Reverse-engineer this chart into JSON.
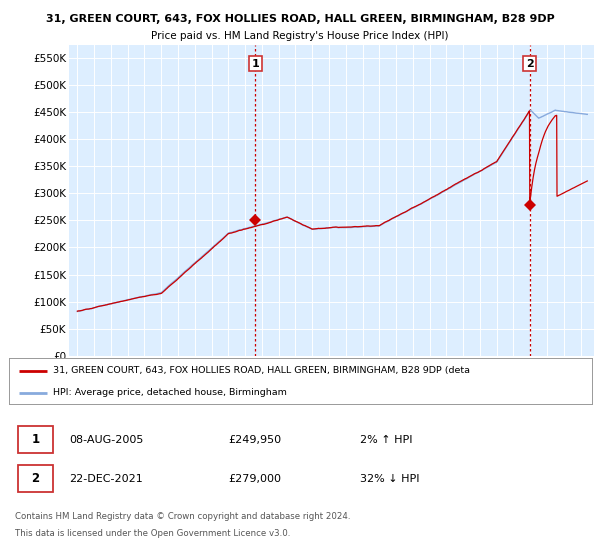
{
  "title_line1": "31, GREEN COURT, 643, FOX HOLLIES ROAD, HALL GREEN, BIRMINGHAM, B28 9DP",
  "title_line2": "Price paid vs. HM Land Registry's House Price Index (HPI)",
  "background_color": "#ffffff",
  "plot_bg_color": "#ddeeff",
  "grid_color": "#ffffff",
  "hpi_color": "#88aadd",
  "price_color": "#cc0000",
  "marker_color": "#cc0000",
  "ylim": [
    0,
    575000
  ],
  "yticks": [
    0,
    50000,
    100000,
    150000,
    200000,
    250000,
    300000,
    350000,
    400000,
    450000,
    500000,
    550000
  ],
  "ytick_labels": [
    "£0",
    "£50K",
    "£100K",
    "£150K",
    "£200K",
    "£250K",
    "£300K",
    "£350K",
    "£400K",
    "£450K",
    "£500K",
    "£550K"
  ],
  "sale1_year": 2005.6,
  "sale1_price": 249950,
  "sale2_year": 2021.97,
  "sale2_price": 279000,
  "legend_line1": "31, GREEN COURT, 643, FOX HOLLIES ROAD, HALL GREEN, BIRMINGHAM, B28 9DP (deta",
  "legend_line2": "HPI: Average price, detached house, Birmingham",
  "footer_line1": "Contains HM Land Registry data © Crown copyright and database right 2024.",
  "footer_line2": "This data is licensed under the Open Government Licence v3.0.",
  "table_row1": [
    "1",
    "08-AUG-2005",
    "£249,950",
    "2% ↑ HPI"
  ],
  "table_row2": [
    "2",
    "22-DEC-2021",
    "£279,000",
    "32% ↓ HPI"
  ]
}
